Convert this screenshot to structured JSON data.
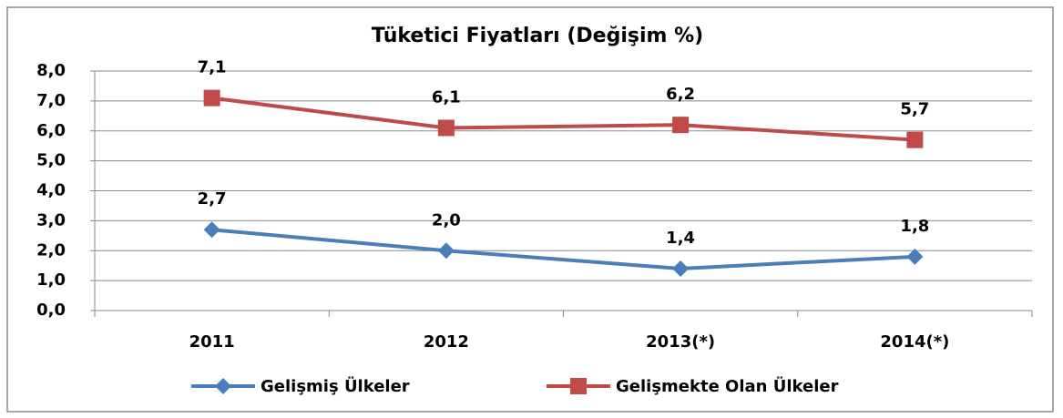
{
  "chart_data": {
    "type": "line",
    "title": "Tüketici Fiyatları (Değişim %)",
    "categories": [
      "2011",
      "2012",
      "2013(*)",
      "2014(*)"
    ],
    "series": [
      {
        "name": "Gelişmiş Ülkeler",
        "color": "#4a7ebb",
        "marker": "diamond",
        "values": [
          2.7,
          2.0,
          1.4,
          1.8
        ],
        "value_labels": [
          "2,7",
          "2,0",
          "1,4",
          "1,8"
        ]
      },
      {
        "name": "Gelişmekte Olan Ülkeler",
        "color": "#be4b48",
        "marker": "square",
        "values": [
          7.1,
          6.1,
          6.2,
          5.7
        ],
        "value_labels": [
          "7,1",
          "6,1",
          "6,2",
          "5,7"
        ]
      }
    ],
    "ylim": [
      0,
      8
    ],
    "yticks": [
      {
        "value": 0,
        "label": "0,0"
      },
      {
        "value": 1,
        "label": "1,0"
      },
      {
        "value": 2,
        "label": "2,0"
      },
      {
        "value": 3,
        "label": "3,0"
      },
      {
        "value": 4,
        "label": "4,0"
      },
      {
        "value": 5,
        "label": "5,0"
      },
      {
        "value": 6,
        "label": "6,0"
      },
      {
        "value": 7,
        "label": "7,0"
      },
      {
        "value": 8,
        "label": "8,0"
      }
    ],
    "grid": true,
    "legend": "bottom"
  }
}
